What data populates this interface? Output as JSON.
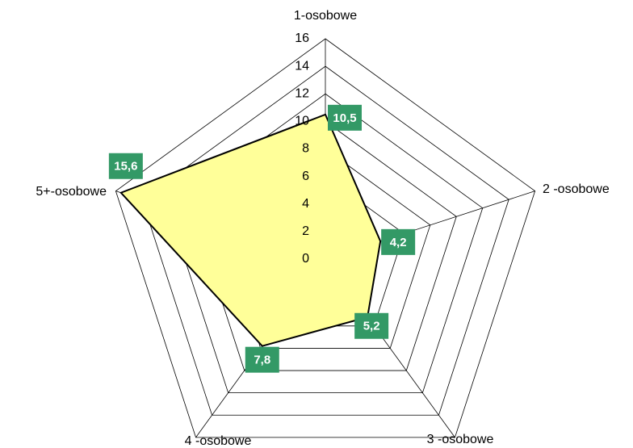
{
  "chart_data": {
    "type": "radar",
    "categories": [
      "1-osobowe",
      "2 -osobowe",
      "3 -osobowe",
      "4 -osobowe",
      "5+-osobowe"
    ],
    "values": [
      10.5,
      4.2,
      5.2,
      7.8,
      15.6
    ],
    "value_labels": [
      "10,5",
      "4,2",
      "5,2",
      "7,8",
      "15,6"
    ],
    "color": "#ffff99",
    "label_color": "#339966",
    "ylim": [
      0,
      16
    ],
    "yticks": [
      0,
      2,
      4,
      6,
      8,
      10,
      12,
      14,
      16
    ],
    "grid": true
  }
}
